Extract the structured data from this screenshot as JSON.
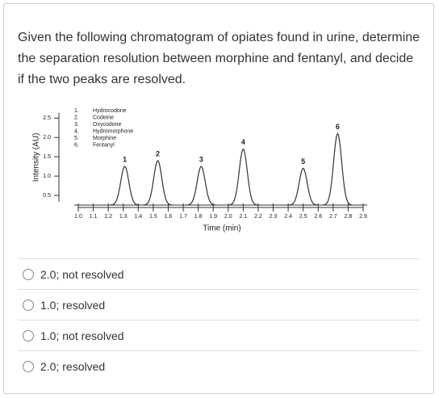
{
  "question": "Given the following chromatogram of opiates found in urine, determine the separation resolution between morphine and fentanyl, and decide if the two peaks are resolved.",
  "chart_data": {
    "type": "chromatogram",
    "x_label": "Time (min)",
    "y_label": "Intensity (AU)",
    "xlim": [
      1.0,
      2.9
    ],
    "ylim": [
      0.25,
      2.8
    ],
    "xticks": [
      {
        "value": 1.0,
        "label": "1.0"
      },
      1.1,
      1.2,
      1.3,
      1.4,
      1.5,
      1.6,
      1.7,
      1.8,
      1.9,
      {
        "value": 2.0,
        "label": "2.0"
      },
      2.1,
      2.2,
      2.3,
      2.4,
      2.5,
      2.6,
      2.7,
      2.8,
      2.9
    ],
    "yticks": [
      0.5,
      {
        "value": 1.0,
        "label": "1.0"
      },
      1.5,
      {
        "value": 2.0,
        "label": "2.0"
      },
      2.5
    ],
    "legend": [
      {
        "number": "1.",
        "name": "Hydrocodone"
      },
      {
        "number": "2.",
        "name": "Codeine"
      },
      {
        "number": "3.",
        "name": "Oxycodone"
      },
      {
        "number": "4.",
        "name": "Hydromorphone"
      },
      {
        "number": "5.",
        "name": "Morphine"
      },
      {
        "number": "6.",
        "name": "Fentanyl"
      }
    ],
    "peaks": [
      {
        "label": "1",
        "rt": 1.31,
        "height": 1.25
      },
      {
        "label": "2",
        "rt": 1.53,
        "height": 1.4
      },
      {
        "label": "3",
        "rt": 1.82,
        "height": 1.25
      },
      {
        "label": "4",
        "rt": 2.1,
        "height": 1.7
      },
      {
        "label": "5",
        "rt": 2.5,
        "height": 1.2
      },
      {
        "label": "6",
        "rt": 2.73,
        "height": 2.1
      }
    ]
  },
  "options": [
    "2.0; not resolved",
    "1.0; resolved",
    "1.0; not resolved",
    "2.0; resolved"
  ]
}
